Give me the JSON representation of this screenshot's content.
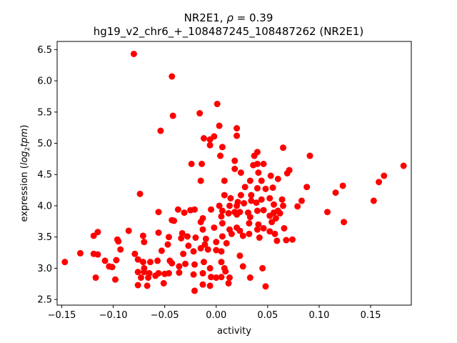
{
  "chart_data": {
    "type": "scatter",
    "title_line1_prefix": "NR2E1, ",
    "title_rho_symbol": "ρ",
    "title_rho_value": " = 0.39",
    "title_line2": "hg19_v2_chr6_+_108487245_108487262 (NR2E1)",
    "xlabel": "activity",
    "ylabel_prefix": "expression (",
    "ylabel_log": "log",
    "ylabel_sub": "2",
    "ylabel_tpm": "tpm",
    "ylabel_suffix": ")",
    "xlim": [
      -0.1545,
      0.1895
    ],
    "ylim": [
      2.41,
      6.63
    ],
    "x_ticks": [
      -0.15,
      -0.1,
      -0.05,
      0.0,
      0.05,
      0.1,
      0.15
    ],
    "x_tick_labels": [
      "−0.15",
      "−0.10",
      "−0.05",
      "0.00",
      "0.05",
      "0.10",
      "0.15"
    ],
    "y_ticks": [
      2.5,
      3.0,
      3.5,
      4.0,
      4.5,
      5.0,
      5.5,
      6.0,
      6.5
    ],
    "y_tick_labels": [
      "2.5",
      "3.0",
      "3.5",
      "4.0",
      "4.5",
      "5.0",
      "5.5",
      "6.0",
      "6.5"
    ],
    "grid": false,
    "marker_color": "#ff0000",
    "points": [
      {
        "x": -0.08,
        "y": 6.43
      },
      {
        "x": -0.043,
        "y": 6.07
      },
      {
        "x": 0.001,
        "y": 5.63
      },
      {
        "x": -0.042,
        "y": 5.44
      },
      {
        "x": -0.016,
        "y": 5.48
      },
      {
        "x": -0.054,
        "y": 5.2
      },
      {
        "x": 0.02,
        "y": 5.24
      },
      {
        "x": 0.003,
        "y": 5.28
      },
      {
        "x": -0.012,
        "y": 5.08
      },
      {
        "x": -0.006,
        "y": 5.06
      },
      {
        "x": -0.002,
        "y": 5.11
      },
      {
        "x": 0.02,
        "y": 5.12
      },
      {
        "x": -0.006,
        "y": 4.97
      },
      {
        "x": 0.006,
        "y": 4.94
      },
      {
        "x": 0.065,
        "y": 4.93
      },
      {
        "x": 0.004,
        "y": 4.8
      },
      {
        "x": 0.037,
        "y": 4.8
      },
      {
        "x": 0.04,
        "y": 4.86
      },
      {
        "x": 0.091,
        "y": 4.8
      },
      {
        "x": 0.018,
        "y": 4.72
      },
      {
        "x": -0.024,
        "y": 4.67
      },
      {
        "x": -0.014,
        "y": 4.67
      },
      {
        "x": 0.036,
        "y": 4.65
      },
      {
        "x": 0.04,
        "y": 4.67
      },
      {
        "x": 0.018,
        "y": 4.59
      },
      {
        "x": 0.046,
        "y": 4.67
      },
      {
        "x": 0.071,
        "y": 4.57
      },
      {
        "x": 0.024,
        "y": 4.53
      },
      {
        "x": 0.041,
        "y": 4.53
      },
      {
        "x": 0.053,
        "y": 4.48
      },
      {
        "x": 0.069,
        "y": 4.52
      },
      {
        "x": 0.163,
        "y": 4.48
      },
      {
        "x": 0.158,
        "y": 4.38
      },
      {
        "x": 0.182,
        "y": 4.64
      },
      {
        "x": 0.008,
        "y": 4.4
      },
      {
        "x": 0.033,
        "y": 4.4
      },
      {
        "x": 0.044,
        "y": 4.4
      },
      {
        "x": 0.06,
        "y": 4.43
      },
      {
        "x": -0.015,
        "y": 4.4
      },
      {
        "x": 0.028,
        "y": 4.3
      },
      {
        "x": 0.04,
        "y": 4.28
      },
      {
        "x": 0.048,
        "y": 4.27
      },
      {
        "x": 0.055,
        "y": 4.29
      },
      {
        "x": 0.088,
        "y": 4.3
      },
      {
        "x": 0.123,
        "y": 4.32
      },
      {
        "x": 0.116,
        "y": 4.21
      },
      {
        "x": -0.074,
        "y": 4.19
      },
      {
        "x": 0.008,
        "y": 4.17
      },
      {
        "x": 0.024,
        "y": 4.17
      },
      {
        "x": 0.034,
        "y": 4.17
      },
      {
        "x": 0.014,
        "y": 4.12
      },
      {
        "x": 0.034,
        "y": 4.08
      },
      {
        "x": 0.044,
        "y": 4.1
      },
      {
        "x": 0.052,
        "y": 4.12
      },
      {
        "x": 0.064,
        "y": 4.1
      },
      {
        "x": 0.083,
        "y": 4.08
      },
      {
        "x": 0.021,
        "y": 4.06
      },
      {
        "x": 0.027,
        "y": 4.04
      },
      {
        "x": 0.039,
        "y": 4.05
      },
      {
        "x": 0.003,
        "y": 4.0
      },
      {
        "x": 0.013,
        "y": 4.0
      },
      {
        "x": 0.02,
        "y": 4.0
      },
      {
        "x": 0.056,
        "y": 4.02
      },
      {
        "x": 0.065,
        "y": 4.0
      },
      {
        "x": 0.079,
        "y": 3.99
      },
      {
        "x": 0.153,
        "y": 4.08
      },
      {
        "x": -0.037,
        "y": 3.94
      },
      {
        "x": -0.025,
        "y": 3.93
      },
      {
        "x": -0.021,
        "y": 3.94
      },
      {
        "x": -0.005,
        "y": 3.94
      },
      {
        "x": 0.006,
        "y": 3.92
      },
      {
        "x": 0.012,
        "y": 3.88
      },
      {
        "x": 0.018,
        "y": 3.9
      },
      {
        "x": 0.023,
        "y": 3.9
      },
      {
        "x": 0.031,
        "y": 3.89
      },
      {
        "x": 0.04,
        "y": 3.92
      },
      {
        "x": 0.046,
        "y": 3.93
      },
      {
        "x": 0.056,
        "y": 3.89
      },
      {
        "x": 0.06,
        "y": 3.92
      },
      {
        "x": 0.108,
        "y": 3.9
      },
      {
        "x": -0.056,
        "y": 3.9
      },
      {
        "x": -0.031,
        "y": 3.89
      },
      {
        "x": -0.013,
        "y": 3.8
      },
      {
        "x": 0.005,
        "y": 3.83
      },
      {
        "x": 0.012,
        "y": 3.88
      },
      {
        "x": 0.02,
        "y": 3.86
      },
      {
        "x": 0.033,
        "y": 3.82
      },
      {
        "x": 0.052,
        "y": 3.84
      },
      {
        "x": 0.058,
        "y": 3.8
      },
      {
        "x": 0.062,
        "y": 3.88
      },
      {
        "x": -0.043,
        "y": 3.77
      },
      {
        "x": -0.041,
        "y": 3.76
      },
      {
        "x": -0.015,
        "y": 3.74
      },
      {
        "x": 0.006,
        "y": 3.72
      },
      {
        "x": 0.032,
        "y": 3.72
      },
      {
        "x": 0.041,
        "y": 3.7
      },
      {
        "x": 0.054,
        "y": 3.74
      },
      {
        "x": 0.066,
        "y": 3.64
      },
      {
        "x": 0.124,
        "y": 3.74
      },
      {
        "x": -0.085,
        "y": 3.6
      },
      {
        "x": -0.115,
        "y": 3.58
      },
      {
        "x": -0.119,
        "y": 3.52
      },
      {
        "x": -0.071,
        "y": 3.52
      },
      {
        "x": -0.056,
        "y": 3.57
      },
      {
        "x": -0.033,
        "y": 3.56
      },
      {
        "x": -0.013,
        "y": 3.62
      },
      {
        "x": -0.002,
        "y": 3.65
      },
      {
        "x": 0.013,
        "y": 3.62
      },
      {
        "x": 0.02,
        "y": 3.65
      },
      {
        "x": 0.023,
        "y": 3.6
      },
      {
        "x": 0.032,
        "y": 3.55
      },
      {
        "x": 0.04,
        "y": 3.62
      },
      {
        "x": 0.046,
        "y": 3.64
      },
      {
        "x": 0.052,
        "y": 3.59
      },
      {
        "x": 0.057,
        "y": 3.55
      },
      {
        "x": -0.096,
        "y": 3.46
      },
      {
        "x": -0.095,
        "y": 3.43
      },
      {
        "x": -0.046,
        "y": 3.5
      },
      {
        "x": -0.034,
        "y": 3.48
      },
      {
        "x": -0.028,
        "y": 3.51
      },
      {
        "x": -0.02,
        "y": 3.49
      },
      {
        "x": -0.01,
        "y": 3.47
      },
      {
        "x": 0.006,
        "y": 3.51
      },
      {
        "x": 0.015,
        "y": 3.55
      },
      {
        "x": 0.026,
        "y": 3.52
      },
      {
        "x": 0.042,
        "y": 3.49
      },
      {
        "x": 0.068,
        "y": 3.45
      },
      {
        "x": 0.074,
        "y": 3.46
      },
      {
        "x": 0.059,
        "y": 3.44
      },
      {
        "x": -0.07,
        "y": 3.42
      },
      {
        "x": -0.047,
        "y": 3.38
      },
      {
        "x": -0.027,
        "y": 3.36
      },
      {
        "x": -0.011,
        "y": 3.38
      },
      {
        "x": 0.0,
        "y": 3.42
      },
      {
        "x": 0.01,
        "y": 3.4
      },
      {
        "x": -0.132,
        "y": 3.24
      },
      {
        "x": -0.119,
        "y": 3.23
      },
      {
        "x": -0.115,
        "y": 3.22
      },
      {
        "x": -0.093,
        "y": 3.3
      },
      {
        "x": -0.079,
        "y": 3.23
      },
      {
        "x": -0.053,
        "y": 3.28
      },
      {
        "x": -0.032,
        "y": 3.23
      },
      {
        "x": -0.022,
        "y": 3.27
      },
      {
        "x": -0.015,
        "y": 3.32
      },
      {
        "x": -0.008,
        "y": 3.3
      },
      {
        "x": 0.0,
        "y": 3.29
      },
      {
        "x": 0.005,
        "y": 3.27
      },
      {
        "x": -0.147,
        "y": 3.1
      },
      {
        "x": -0.108,
        "y": 3.12
      },
      {
        "x": -0.097,
        "y": 3.13
      },
      {
        "x": -0.076,
        "y": 3.14
      },
      {
        "x": -0.071,
        "y": 3.1
      },
      {
        "x": -0.064,
        "y": 3.1
      },
      {
        "x": -0.057,
        "y": 3.12
      },
      {
        "x": -0.045,
        "y": 3.12
      },
      {
        "x": -0.036,
        "y": 3.03
      },
      {
        "x": -0.03,
        "y": 3.07
      },
      {
        "x": -0.021,
        "y": 3.06
      },
      {
        "x": -0.012,
        "y": 3.1
      },
      {
        "x": 0.005,
        "y": 3.1
      },
      {
        "x": 0.023,
        "y": 3.2
      },
      {
        "x": -0.104,
        "y": 3.03
      },
      {
        "x": -0.101,
        "y": 3.02
      },
      {
        "x": -0.07,
        "y": 3.0
      },
      {
        "x": -0.043,
        "y": 3.08
      },
      {
        "x": -0.006,
        "y": 3.0
      },
      {
        "x": 0.008,
        "y": 3.0
      },
      {
        "x": 0.026,
        "y": 3.03
      },
      {
        "x": 0.045,
        "y": 3.0
      },
      {
        "x": -0.076,
        "y": 2.94
      },
      {
        "x": -0.07,
        "y": 2.94
      },
      {
        "x": -0.065,
        "y": 2.92
      },
      {
        "x": -0.056,
        "y": 2.92
      },
      {
        "x": -0.05,
        "y": 2.91
      },
      {
        "x": -0.046,
        "y": 2.92
      },
      {
        "x": -0.036,
        "y": 2.93
      },
      {
        "x": -0.022,
        "y": 2.9
      },
      {
        "x": -0.013,
        "y": 2.92
      },
      {
        "x": 0.009,
        "y": 2.95
      },
      {
        "x": -0.098,
        "y": 2.82
      },
      {
        "x": -0.117,
        "y": 2.85
      },
      {
        "x": -0.073,
        "y": 2.85
      },
      {
        "x": -0.066,
        "y": 2.85
      },
      {
        "x": -0.059,
        "y": 2.88
      },
      {
        "x": -0.005,
        "y": 2.86
      },
      {
        "x": 0.0,
        "y": 2.85
      },
      {
        "x": 0.005,
        "y": 2.86
      },
      {
        "x": 0.013,
        "y": 2.85
      },
      {
        "x": 0.033,
        "y": 2.85
      },
      {
        "x": -0.076,
        "y": 2.73
      },
      {
        "x": -0.067,
        "y": 2.72
      },
      {
        "x": -0.051,
        "y": 2.76
      },
      {
        "x": -0.021,
        "y": 2.64
      },
      {
        "x": -0.013,
        "y": 2.74
      },
      {
        "x": -0.006,
        "y": 2.72
      },
      {
        "x": 0.012,
        "y": 2.76
      },
      {
        "x": 0.048,
        "y": 2.71
      }
    ]
  }
}
